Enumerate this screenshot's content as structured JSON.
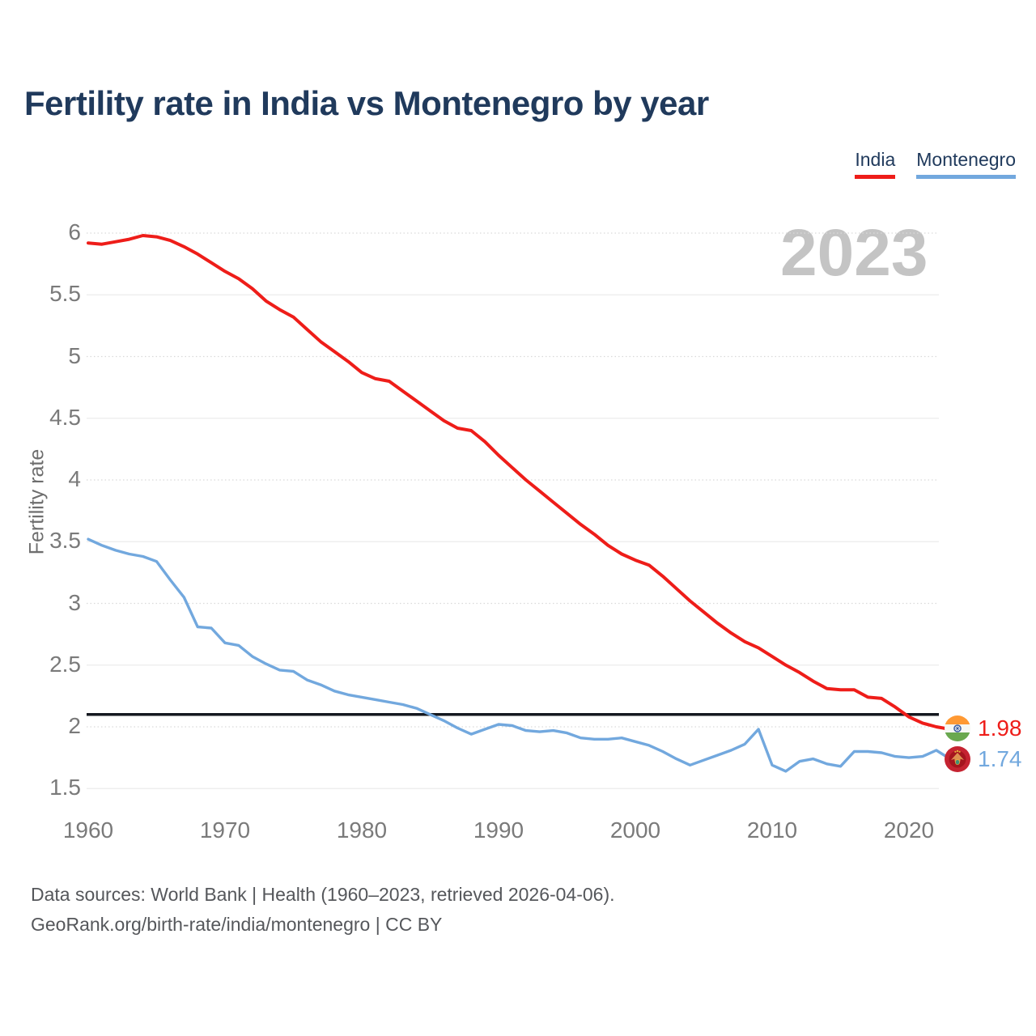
{
  "page": {
    "title": "Fertility rate in India vs Montenegro by year",
    "footer": {
      "line1": "Data sources: World Bank | Health (1960–2023, retrieved 2026-04-06).",
      "line2": "GeoRank.org/birth-rate/india/montenegro | CC BY"
    }
  },
  "colors": {
    "title_text": "#203a5c",
    "axis_text": "#7a7a7a",
    "watermark_text": "#c4c4c4",
    "footer_text": "#55575b",
    "india_red": "#ee1d19",
    "montenegro_blue": "#72a8de",
    "reference_black": "#14181f"
  },
  "chart_data": {
    "type": "line",
    "title": "Fertility rate in India vs Montenegro by year",
    "xlabel": "",
    "ylabel": "Fertility rate",
    "watermark": "2023",
    "grid": true,
    "legend_position": "top-right",
    "ylim": [
      1.5,
      6
    ],
    "yticks": [
      1.5,
      2,
      2.5,
      3,
      3.5,
      4,
      4.5,
      5,
      5.5,
      6
    ],
    "xticks": [
      1960,
      1970,
      1980,
      1990,
      2000,
      2010,
      2020
    ],
    "x_years": {
      "start": 1960,
      "end": 2023,
      "step": 1
    },
    "reference_line": {
      "value": 2.1,
      "color": "#14181f"
    },
    "series": [
      {
        "name": "India",
        "color": "#ee1d19",
        "final_value": 1.98,
        "values": [
          5.92,
          5.91,
          5.93,
          5.95,
          5.98,
          5.97,
          5.94,
          5.89,
          5.83,
          5.76,
          5.69,
          5.63,
          5.55,
          5.45,
          5.38,
          5.32,
          5.22,
          5.12,
          5.04,
          4.96,
          4.87,
          4.82,
          4.8,
          4.72,
          4.64,
          4.56,
          4.48,
          4.42,
          4.4,
          4.31,
          4.2,
          4.1,
          4.0,
          3.91,
          3.82,
          3.73,
          3.64,
          3.56,
          3.47,
          3.4,
          3.35,
          3.31,
          3.22,
          3.12,
          3.02,
          2.93,
          2.84,
          2.76,
          2.69,
          2.64,
          2.57,
          2.5,
          2.44,
          2.37,
          2.31,
          2.3,
          2.3,
          2.24,
          2.23,
          2.16,
          2.08,
          2.03,
          2.0,
          1.98
        ]
      },
      {
        "name": "Montenegro",
        "color": "#72a8de",
        "final_value": 1.74,
        "values": [
          3.52,
          3.47,
          3.43,
          3.4,
          3.38,
          3.34,
          3.19,
          3.05,
          2.81,
          2.8,
          2.68,
          2.66,
          2.57,
          2.51,
          2.46,
          2.45,
          2.38,
          2.34,
          2.29,
          2.26,
          2.24,
          2.22,
          2.2,
          2.18,
          2.15,
          2.1,
          2.05,
          1.99,
          1.94,
          1.98,
          2.02,
          2.01,
          1.97,
          1.96,
          1.97,
          1.95,
          1.91,
          1.9,
          1.9,
          1.91,
          1.88,
          1.85,
          1.8,
          1.74,
          1.69,
          1.73,
          1.77,
          1.81,
          1.86,
          1.98,
          1.69,
          1.64,
          1.72,
          1.74,
          1.7,
          1.68,
          1.8,
          1.8,
          1.79,
          1.76,
          1.75,
          1.76,
          1.81,
          1.74
        ]
      }
    ],
    "end_labels": [
      {
        "series": "India",
        "value": "1.98",
        "flag": "india-flag"
      },
      {
        "series": "Montenegro",
        "value": "1.74",
        "flag": "montenegro-flag"
      }
    ]
  }
}
